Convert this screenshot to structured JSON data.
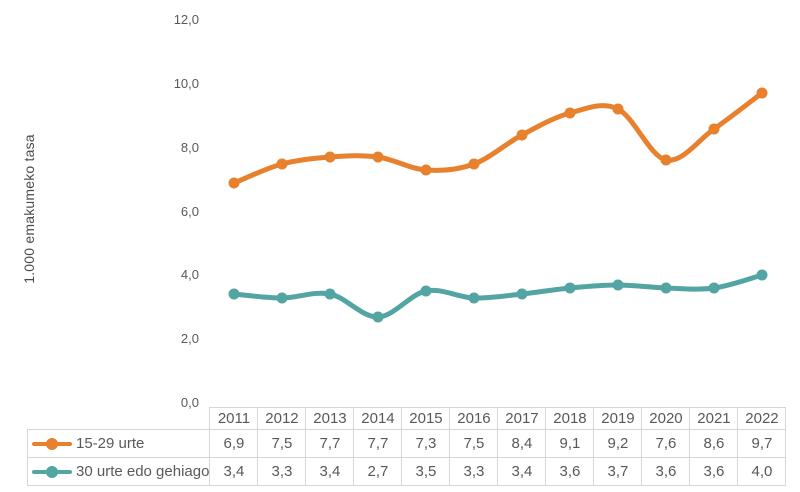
{
  "chart_data": {
    "type": "line",
    "title": "",
    "xlabel": "",
    "ylabel": "1.000 emakumeko tasa",
    "categories": [
      "2011",
      "2012",
      "2013",
      "2014",
      "2015",
      "2016",
      "2017",
      "2018",
      "2019",
      "2020",
      "2021",
      "2022"
    ],
    "series": [
      {
        "name": "15-29 urte",
        "color": "#e8812e",
        "values": [
          6.9,
          7.5,
          7.7,
          7.7,
          7.3,
          7.5,
          8.4,
          9.1,
          9.2,
          7.6,
          8.6,
          9.7
        ]
      },
      {
        "name": "30 urte edo gehiago",
        "color": "#52a5a2",
        "values": [
          3.4,
          3.3,
          3.4,
          2.7,
          3.5,
          3.3,
          3.4,
          3.6,
          3.7,
          3.6,
          3.6,
          4.0
        ]
      }
    ],
    "ylim": [
      0,
      12
    ],
    "ytick_interval": 2,
    "ytick_labels": [
      "0,0",
      "2,0",
      "4,0",
      "6,0",
      "8,0",
      "10,0",
      "12,0"
    ],
    "grid": false,
    "smooth": true,
    "marker": "circle",
    "legend_position": "table-rows",
    "decimal_separator": ","
  },
  "style": {
    "text_color": "#595959",
    "axis_title_color": "#4a4a4a",
    "table_border_color": "#d6d6d6",
    "background": "#ffffff"
  }
}
